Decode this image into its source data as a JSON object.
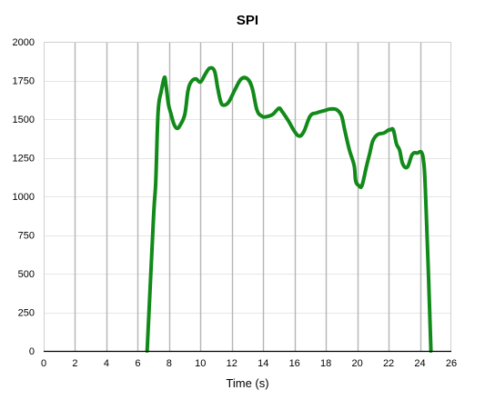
{
  "chart_data": {
    "type": "line",
    "title": "SPI",
    "xlabel": "Time (s)",
    "ylabel": "",
    "xlim": [
      0,
      26
    ],
    "ylim": [
      0,
      2000
    ],
    "x_ticks": [
      0,
      2,
      4,
      6,
      8,
      10,
      12,
      14,
      16,
      18,
      20,
      22,
      24,
      26
    ],
    "y_ticks": [
      0,
      250,
      500,
      750,
      1000,
      1250,
      1500,
      1750,
      2000
    ],
    "x_gridlines": [
      0,
      2,
      4,
      6,
      8,
      10,
      12,
      14,
      16,
      18,
      20,
      22,
      24
    ],
    "grid": true,
    "legend": "none",
    "series": [
      {
        "color": "#118a1a",
        "x": [
          6.6,
          7.0,
          7.15,
          7.3,
          7.5,
          7.7,
          7.8,
          7.95,
          8.1,
          8.3,
          8.5,
          8.7,
          9.0,
          9.2,
          9.4,
          9.7,
          10.0,
          10.3,
          10.6,
          10.9,
          11.1,
          11.3,
          11.5,
          11.8,
          12.2,
          12.6,
          13.0,
          13.3,
          13.6,
          13.9,
          14.2,
          14.6,
          15.0,
          15.2,
          15.6,
          16.0,
          16.3,
          16.6,
          17.0,
          17.4,
          17.9,
          18.3,
          18.7,
          19.0,
          19.2,
          19.5,
          19.8,
          19.9,
          20.1,
          20.3,
          20.6,
          20.8,
          21.0,
          21.3,
          21.7,
          22.0,
          22.1,
          22.3,
          22.5,
          22.7,
          22.9,
          23.2,
          23.5,
          23.8,
          24.2,
          24.4,
          24.7
        ],
        "y": [
          0,
          850,
          1100,
          1550,
          1680,
          1770,
          1720,
          1600,
          1540,
          1470,
          1440,
          1460,
          1530,
          1680,
          1740,
          1760,
          1740,
          1790,
          1830,
          1810,
          1700,
          1610,
          1590,
          1610,
          1690,
          1760,
          1760,
          1700,
          1560,
          1520,
          1515,
          1530,
          1570,
          1550,
          1490,
          1420,
          1390,
          1420,
          1520,
          1540,
          1555,
          1565,
          1560,
          1520,
          1430,
          1300,
          1200,
          1100,
          1070,
          1070,
          1200,
          1280,
          1360,
          1400,
          1410,
          1430,
          1430,
          1430,
          1340,
          1300,
          1210,
          1190,
          1270,
          1280,
          1250,
          900,
          0
        ]
      }
    ]
  }
}
